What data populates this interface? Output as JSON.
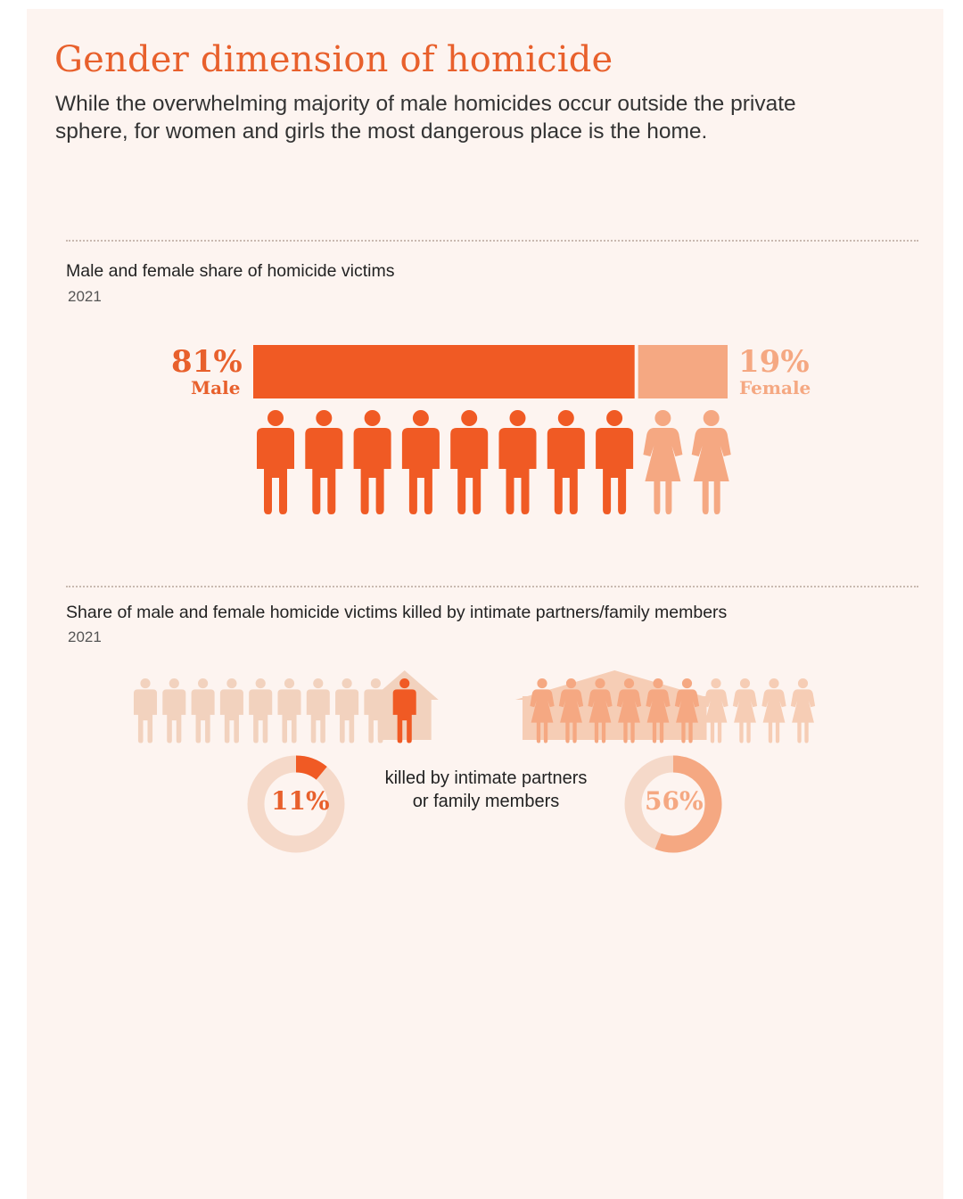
{
  "header": {
    "title": "Gender dimension of homicide",
    "subtitle": "While the overwhelming majority of male homicides occur outside the private sphere, for women and girls the most dangerous place is the home."
  },
  "section1": {
    "title": "Male and female share of homicide victims",
    "year": "2021"
  },
  "section2": {
    "title": "Share of male and female homicide victims killed by intimate partners/family members",
    "year": "2021",
    "caption": "killed by intimate partners or family members"
  },
  "colors": {
    "male": "#f05a24",
    "female": "#f5a882",
    "male_light": "#f2d2be",
    "female_light": "#f6cdb5",
    "donut_track": "#f5d9c9",
    "background": "#fdf4f0"
  },
  "chart_data": [
    {
      "type": "bar",
      "title": "Male and female share of homicide victims",
      "subtitle": "2021",
      "unit": "%",
      "categories": [
        "Male",
        "Female"
      ],
      "values": [
        81,
        19
      ],
      "labels": {
        "male_pct": "81%",
        "male": "Male",
        "female_pct": "19%",
        "female": "Female"
      },
      "pictogram": {
        "male_icons": 8,
        "female_icons": 2
      }
    },
    {
      "type": "pie",
      "title": "Share of male and female homicide victims killed by intimate partners/family members",
      "subtitle": "2021",
      "unit": "%",
      "categories": [
        "Male",
        "Female"
      ],
      "values": [
        11,
        56
      ],
      "labels": {
        "male_pct": "11%",
        "female_pct": "56%"
      },
      "pictogram": {
        "male_icons_total": 10,
        "male_icons_home": 1,
        "female_icons_total": 10,
        "female_icons_home": 6
      }
    }
  ]
}
